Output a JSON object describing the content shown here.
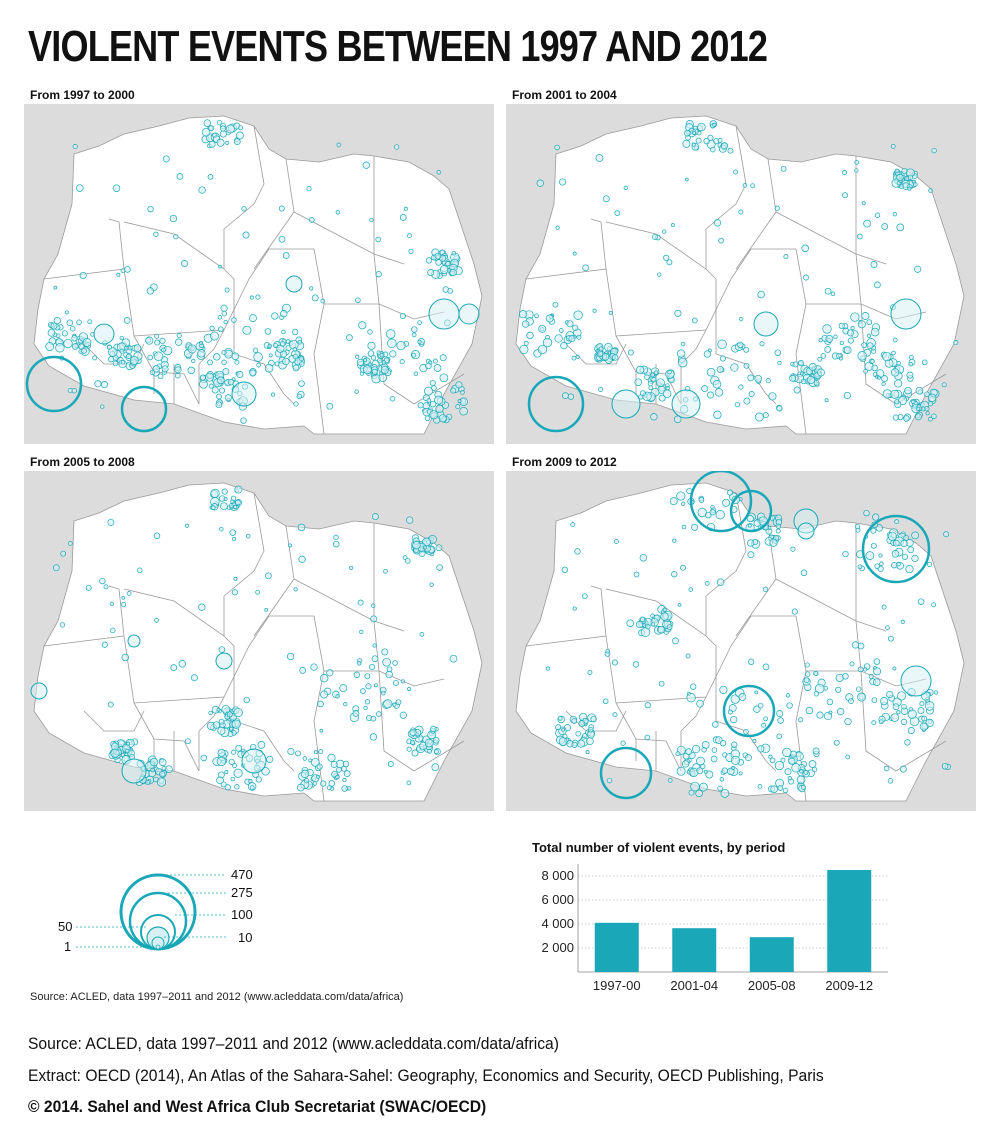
{
  "title": "VIOLENT EVENTS BETWEEN 1997 AND 2012",
  "panels": [
    {
      "label": "From 1997 to 2000"
    },
    {
      "label": "From 2001 to 2004"
    },
    {
      "label": "From 2005 to 2008"
    },
    {
      "label": "From 2009 to 2012"
    }
  ],
  "legend": {
    "values": [
      "470",
      "275",
      "100",
      "10",
      "50",
      "1"
    ],
    "source": "Source: ACLED, data 1997–2011 and 2012 (www.acleddata.com/data/africa)"
  },
  "chart_data": {
    "type": "bar",
    "title": "Total number of violent events, by period",
    "categories": [
      "1997-00",
      "2001-04",
      "2005-08",
      "2009-12"
    ],
    "values": [
      4100,
      3650,
      2900,
      8500
    ],
    "yticks": [
      "2 000",
      "4 000",
      "6 000",
      "8 000"
    ],
    "ylim": [
      0,
      9000
    ],
    "color": "#1aa8b8"
  },
  "footer": {
    "source": "Source: ACLED, data 1997–2011 and 2012 (www.acleddata.com/data/africa)",
    "extract": "Extract: OECD (2014), An Atlas of the Sahara-Sahel: Geography, Economics  and Security, OECD Publishing, Paris",
    "copyright": "© 2014. Sahel and West Africa Club Secretariat (SWAC/OECD)"
  },
  "colors": {
    "accent": "#1aa8b8",
    "land": "#ffffff",
    "sea": "#dcdcdc",
    "border": "#9a9a9a"
  }
}
